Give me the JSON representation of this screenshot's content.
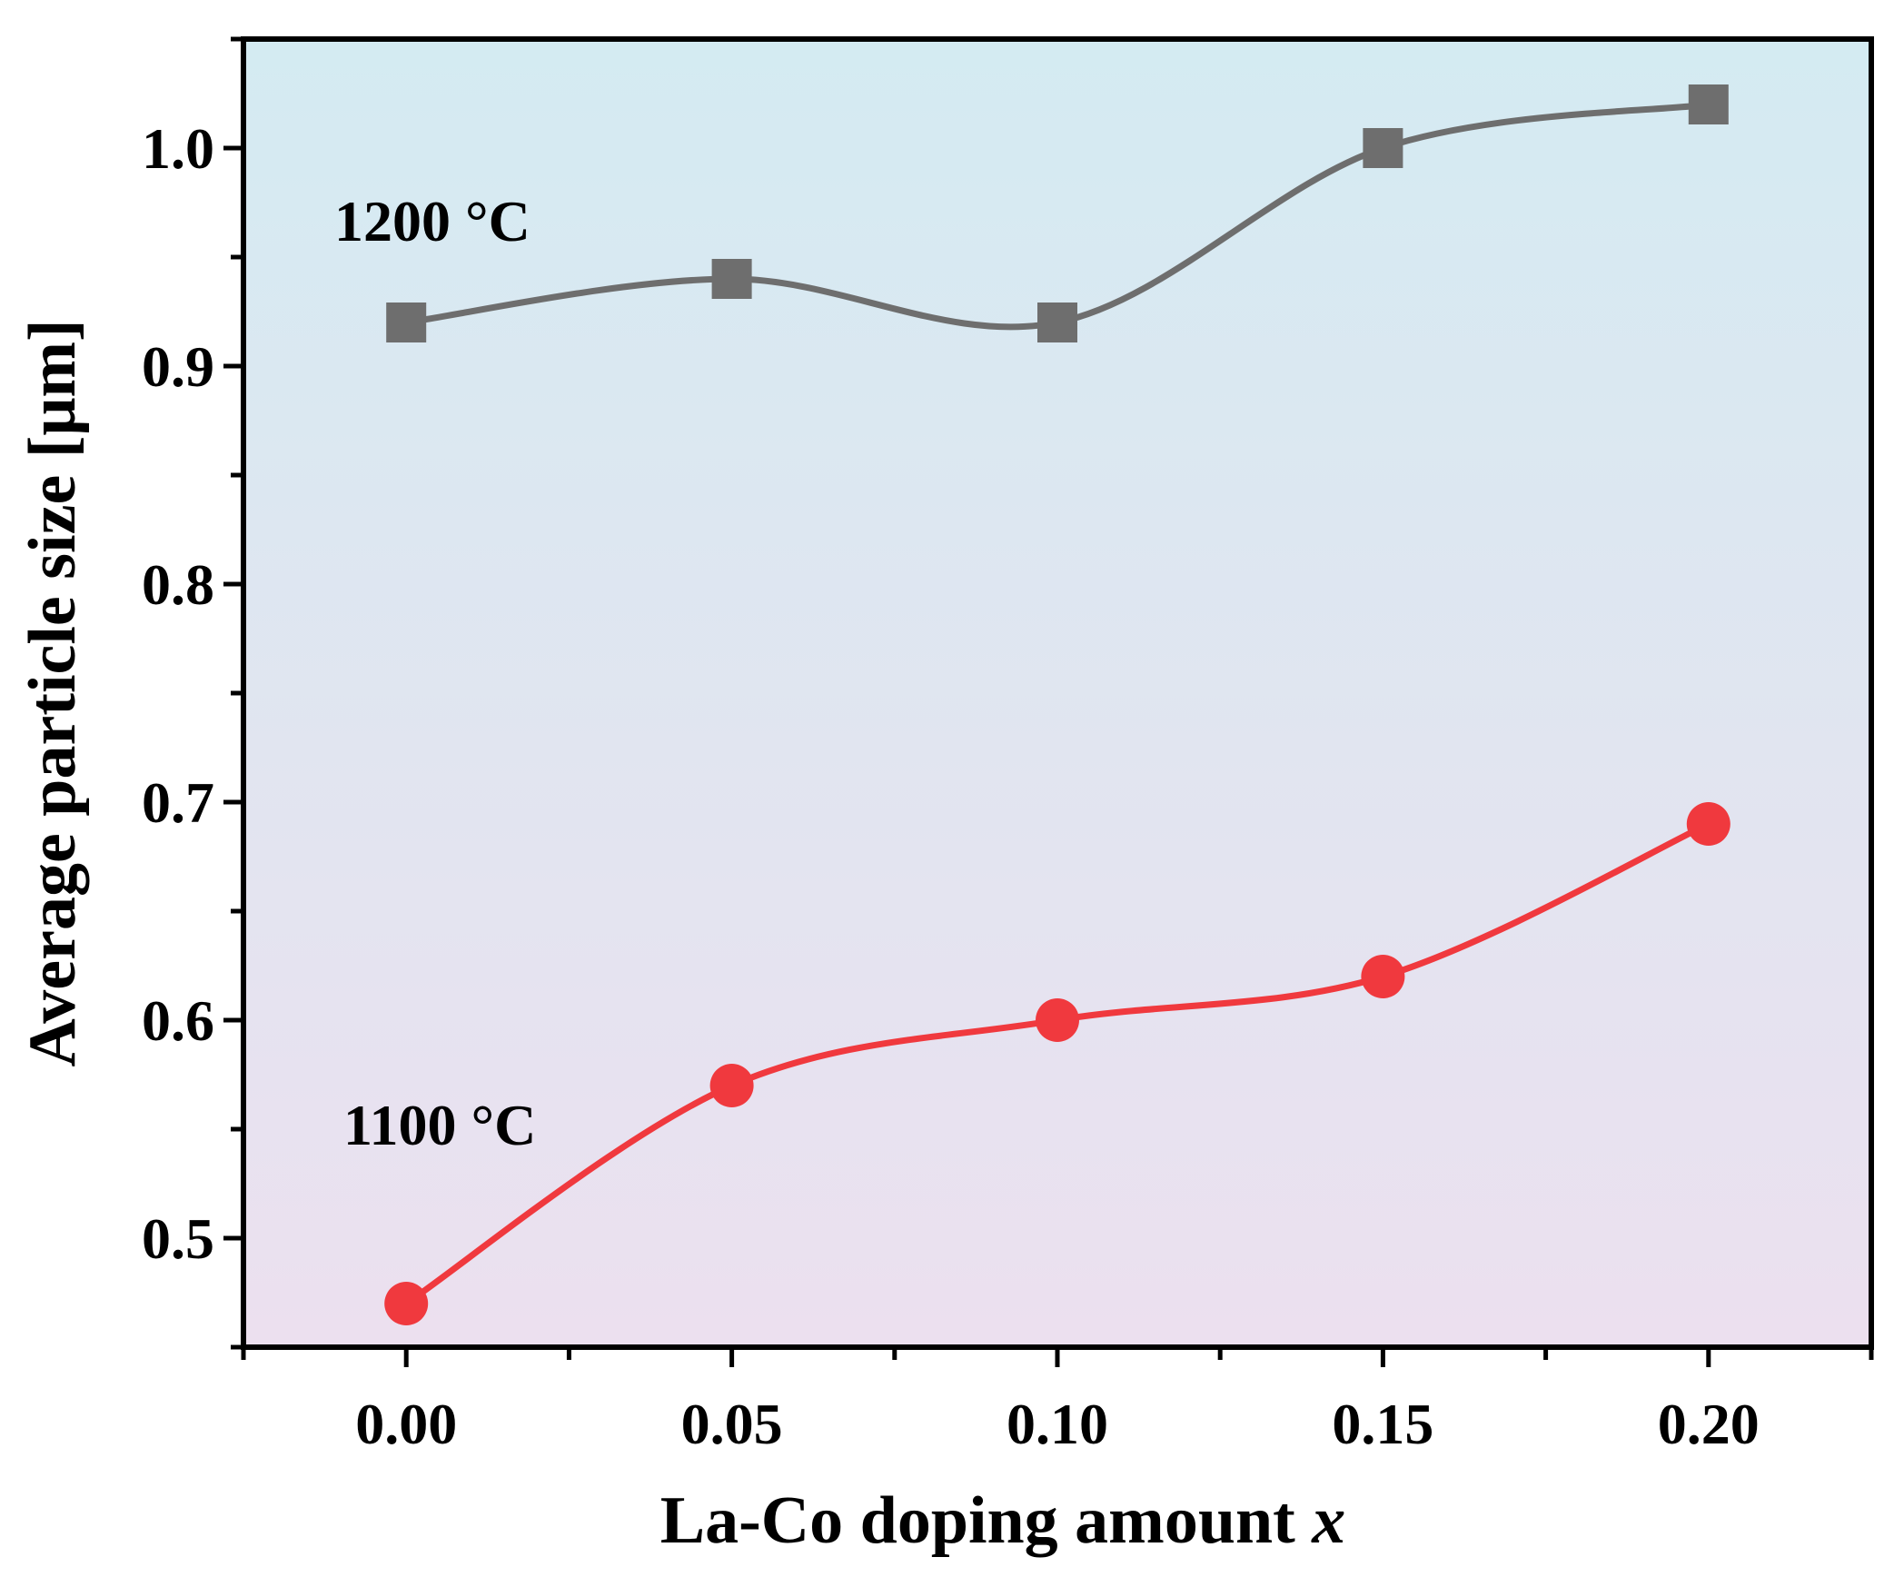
{
  "chart_data": {
    "type": "line",
    "title": "",
    "xlabel": "La-Co doping amount",
    "xlabel_var": "x",
    "ylabel": "Average particle size [μm]",
    "x": [
      0.0,
      0.05,
      0.1,
      0.15,
      0.2
    ],
    "xlim": [
      -0.025,
      0.225
    ],
    "ylim": [
      0.45,
      1.05
    ],
    "xticks": [
      "0.00",
      "0.05",
      "0.10",
      "0.15",
      "0.20"
    ],
    "yticks": [
      "0.5",
      "0.6",
      "0.7",
      "0.8",
      "0.9",
      "1.0"
    ],
    "ytick_values": [
      0.5,
      0.6,
      0.7,
      0.8,
      0.9,
      1.0
    ],
    "grid": false,
    "background_gradient": [
      "#d4ebf2",
      "#ece0ef"
    ],
    "series": [
      {
        "name": "1200 °C",
        "label": "1200 °C",
        "marker": "square",
        "color": "#6e6e6e",
        "values": [
          0.92,
          0.94,
          0.92,
          1.0,
          1.02
        ]
      },
      {
        "name": "1100 °C",
        "label": "1100 °C",
        "marker": "circle",
        "color": "#f0393e",
        "values": [
          0.47,
          0.57,
          0.6,
          0.62,
          0.69
        ]
      }
    ]
  }
}
